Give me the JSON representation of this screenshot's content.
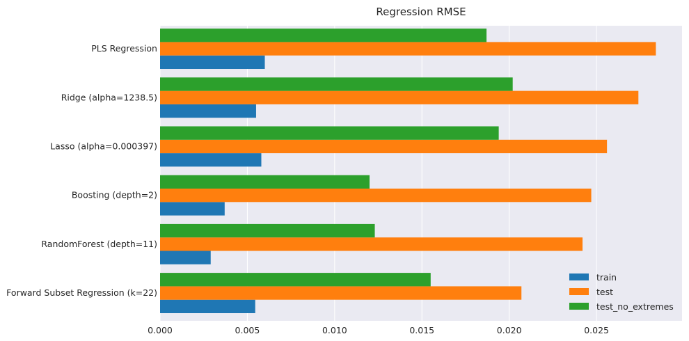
{
  "chart_data": {
    "type": "bar",
    "orientation": "horizontal",
    "title": "Regression RMSE",
    "xlabel": "",
    "ylabel": "",
    "xlim": [
      0,
      0.0299
    ],
    "xticks": [
      0.0,
      0.005,
      0.01,
      0.015,
      0.02,
      0.025
    ],
    "xtick_labels": [
      "0.000",
      "0.005",
      "0.010",
      "0.015",
      "0.020",
      "0.025"
    ],
    "grid": true,
    "background": "#eaeaf2",
    "legend_position": "lower right",
    "categories": [
      "Forward Subset Regression (k=22)",
      "RandomForest (depth=11)",
      "Boosting (depth=2)",
      "Lasso (alpha=0.000397)",
      "Ridge (alpha=1238.5)",
      "PLS Regression"
    ],
    "series": [
      {
        "name": "train",
        "color": "#1f77b4",
        "values": [
          0.00545,
          0.0029,
          0.0037,
          0.0058,
          0.0055,
          0.006
        ]
      },
      {
        "name": "test",
        "color": "#ff7f0e",
        "values": [
          0.0207,
          0.0242,
          0.0247,
          0.0256,
          0.0274,
          0.0284
        ]
      },
      {
        "name": "test_no_extremes",
        "color": "#2ca02c",
        "values": [
          0.0155,
          0.0123,
          0.012,
          0.0194,
          0.0202,
          0.0187
        ]
      }
    ]
  }
}
